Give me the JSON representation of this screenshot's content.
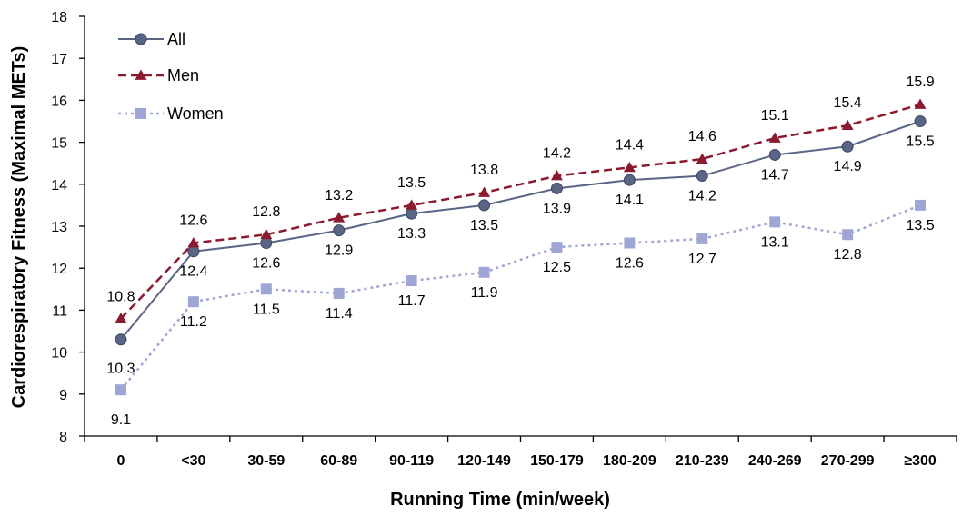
{
  "chart_data": {
    "type": "line",
    "xlabel": "Running Time (min/week)",
    "ylabel": "Cardiorespiratory Fitness (Maximal METs)",
    "ylim": [
      8,
      18
    ],
    "yticks": [
      8,
      9,
      10,
      11,
      12,
      13,
      14,
      15,
      16,
      17,
      18
    ],
    "categories": [
      "0",
      "<30",
      "30-59",
      "60-89",
      "90-119",
      "120-149",
      "150-179",
      "180-209",
      "210-239",
      "240-269",
      "270-299",
      "≥300"
    ],
    "grid": false,
    "legend_position": "top-left",
    "series": [
      {
        "name": "All",
        "color": "#5a6585",
        "line_style": "solid",
        "marker": "circle",
        "values": [
          10.3,
          12.4,
          12.6,
          12.9,
          13.3,
          13.5,
          13.9,
          14.1,
          14.2,
          14.7,
          14.9,
          15.5
        ],
        "labels": [
          "10.3",
          "12.4",
          "12.6",
          "12.9",
          "13.3",
          "13.5",
          "13.9",
          "14.1",
          "14.2",
          "14.7",
          "14.9",
          "15.5"
        ]
      },
      {
        "name": "Men",
        "color": "#8b1a2e",
        "line_style": "dashed",
        "marker": "triangle",
        "values": [
          10.8,
          12.6,
          12.8,
          13.2,
          13.5,
          13.8,
          14.2,
          14.4,
          14.6,
          15.1,
          15.4,
          15.9
        ],
        "labels": [
          "10.8",
          "12.6",
          "12.8",
          "13.2",
          "13.5",
          "13.8",
          "14.2",
          "14.4",
          "14.6",
          "15.1",
          "15.4",
          "15.9"
        ]
      },
      {
        "name": "Women",
        "color": "#9fa6d6",
        "line_style": "dotted",
        "marker": "square",
        "values": [
          9.1,
          11.2,
          11.5,
          11.4,
          11.7,
          11.9,
          12.5,
          12.6,
          12.7,
          13.1,
          12.8,
          13.5
        ],
        "labels": [
          "9.1",
          "11.2",
          "11.5",
          "11.4",
          "11.7",
          "11.9",
          "12.5",
          "12.6",
          "12.7",
          "13.1",
          "12.8",
          "13.5"
        ]
      }
    ]
  }
}
